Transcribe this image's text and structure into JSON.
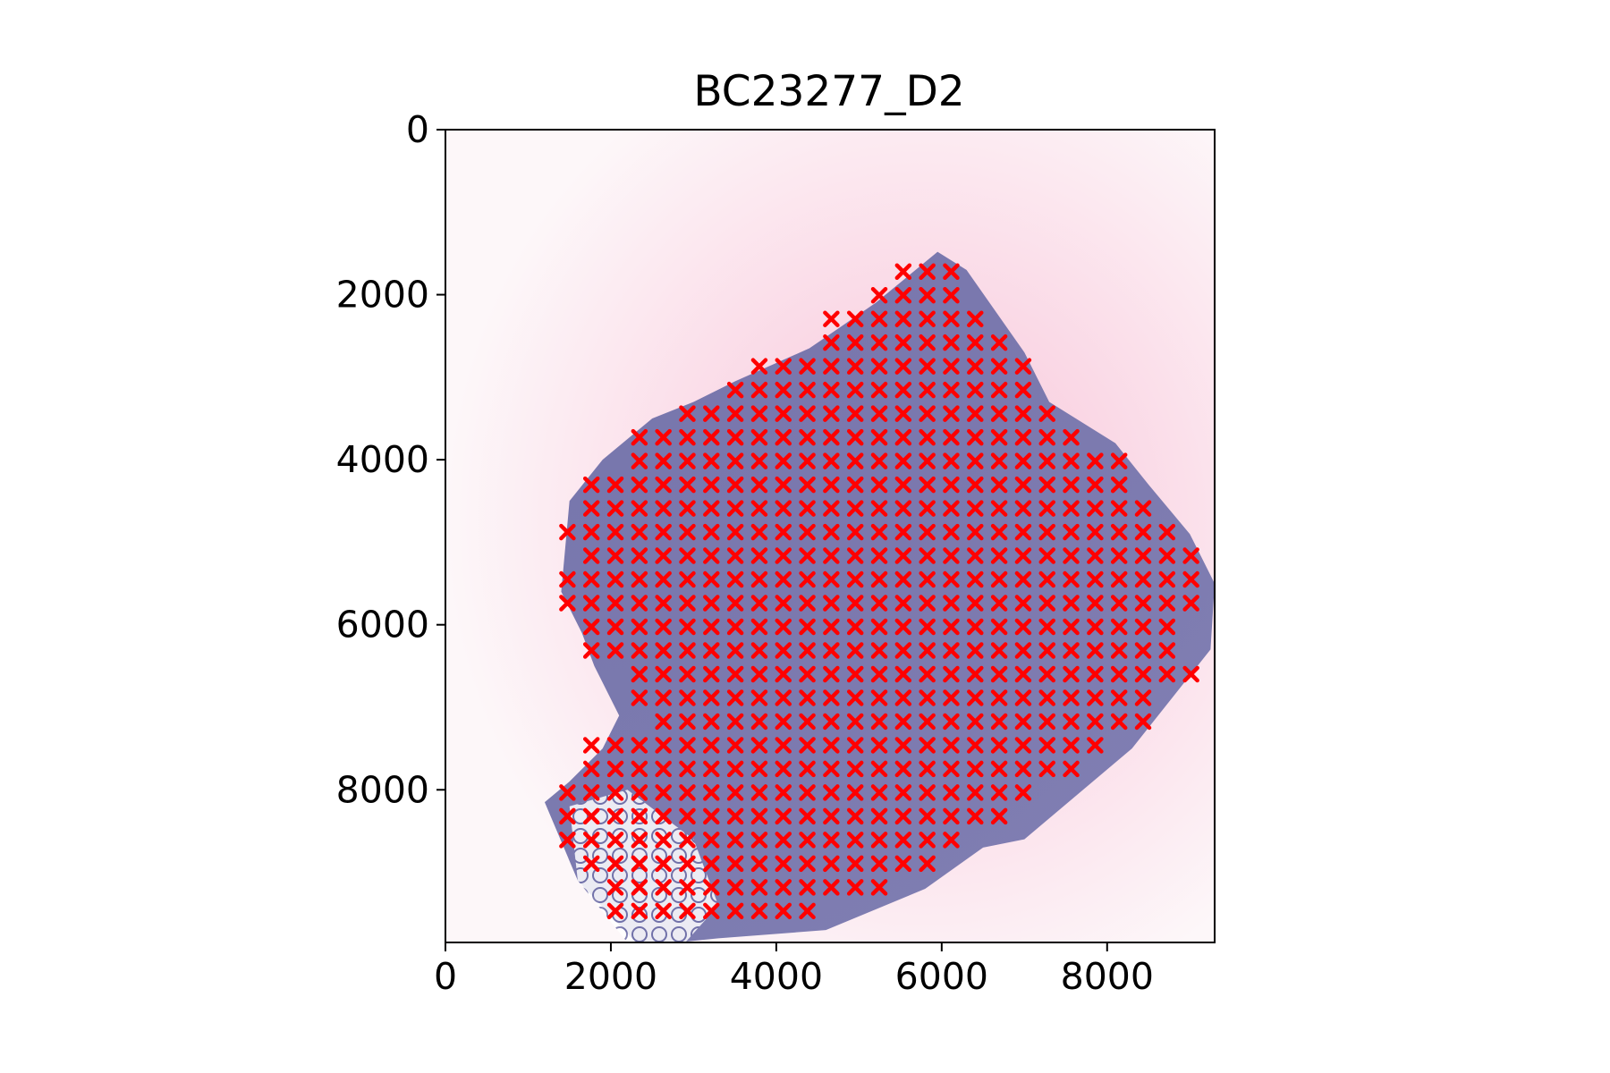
{
  "chart_data": {
    "type": "scatter",
    "title": "BC23277_D2",
    "xlabel": "",
    "ylabel": "",
    "xlim": [
      0,
      9300
    ],
    "ylim": [
      9850,
      0
    ],
    "x_ticks": [
      "0",
      "2000",
      "4000",
      "6000",
      "8000"
    ],
    "y_ticks": [
      "0",
      "2000",
      "4000",
      "6000",
      "8000"
    ],
    "grid": false,
    "legend": "none",
    "marker": "x",
    "marker_color": "#ff0000",
    "background_image": "H&E stained tissue section (purple tissue on pink-white background)",
    "spot_spacing_x": 290,
    "spot_spacing_y": 287,
    "rows": [
      {
        "y": 1720,
        "x_from": 5535,
        "x_to": 6115
      },
      {
        "y": 2007,
        "x_from": 5245,
        "x_to": 6115
      },
      {
        "y": 2294,
        "x_from": 4665,
        "x_to": 6405
      },
      {
        "y": 2581,
        "x_from": 4665,
        "x_to": 6695
      },
      {
        "y": 2868,
        "x_from": 3795,
        "x_to": 6985
      },
      {
        "y": 3155,
        "x_from": 3505,
        "x_to": 6985
      },
      {
        "y": 3442,
        "x_from": 2925,
        "x_to": 7275
      },
      {
        "y": 3729,
        "x_from": 2345,
        "x_to": 7565
      },
      {
        "y": 4016,
        "x_from": 2345,
        "x_to": 8145
      },
      {
        "y": 4303,
        "x_from": 1765,
        "x_to": 8145
      },
      {
        "y": 4590,
        "x_from": 1765,
        "x_to": 8435
      },
      {
        "y": 4877,
        "x_from": 1475,
        "x_to": 8725
      },
      {
        "y": 5164,
        "x_from": 1765,
        "x_to": 9015
      },
      {
        "y": 5451,
        "x_from": 1475,
        "x_to": 9015
      },
      {
        "y": 5738,
        "x_from": 1475,
        "x_to": 9015
      },
      {
        "y": 6025,
        "x_from": 1765,
        "x_to": 8725
      },
      {
        "y": 6312,
        "x_from": 1765,
        "x_to": 8725
      },
      {
        "y": 6599,
        "x_from": 2345,
        "x_to": 9015
      },
      {
        "y": 6886,
        "x_from": 2345,
        "x_to": 8435
      },
      {
        "y": 7173,
        "x_from": 2635,
        "x_to": 8435
      },
      {
        "y": 7460,
        "x_from": 1765,
        "x_to": 7855
      },
      {
        "y": 7747,
        "x_from": 1765,
        "x_to": 7565
      },
      {
        "y": 8034,
        "x_from": 1475,
        "x_to": 6985
      },
      {
        "y": 8321,
        "x_from": 1475,
        "x_to": 6695
      },
      {
        "y": 8608,
        "x_from": 1475,
        "x_to": 6115
      },
      {
        "y": 8895,
        "x_from": 1765,
        "x_to": 5825
      },
      {
        "y": 9182,
        "x_from": 2055,
        "x_to": 5245
      },
      {
        "y": 9469,
        "x_from": 2055,
        "x_to": 4375
      }
    ]
  }
}
